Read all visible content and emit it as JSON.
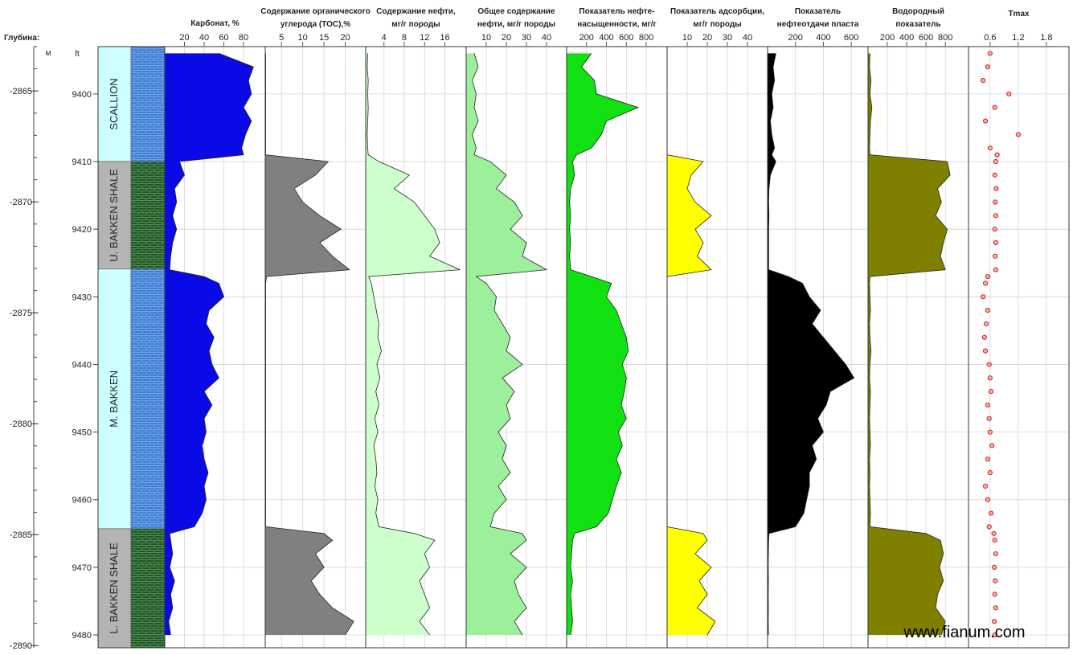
{
  "depth": {
    "label": "Глубина:",
    "m_label": "м",
    "ft_label": "ft",
    "ft": [
      9394,
      9396,
      9398,
      9400,
      9402,
      9404,
      9406,
      9408,
      9409,
      9410,
      9412,
      9414,
      9416,
      9418,
      9420,
      9422,
      9424,
      9426,
      9427,
      9428,
      9430,
      9432,
      9434,
      9436,
      9438,
      9440,
      9442,
      9444,
      9446,
      9448,
      9450,
      9452,
      9454,
      9456,
      9458,
      9460,
      9462,
      9464,
      9465,
      9466,
      9468,
      9470,
      9472,
      9474,
      9476,
      9478,
      9480
    ],
    "ft_lim": [
      9393,
      9481.9
    ],
    "ft_ticks": [
      9400,
      9410,
      9420,
      9430,
      9440,
      9450,
      9460,
      9470,
      9480
    ],
    "m_lim": [
      2863.0,
      2890.1
    ],
    "m_ticks": [
      {
        "value": 2865,
        "label": "-2865"
      },
      {
        "value": 2870,
        "label": "-2870"
      },
      {
        "value": 2875,
        "label": "-2875"
      },
      {
        "value": 2880,
        "label": "-2880"
      },
      {
        "value": 2885,
        "label": "-2885"
      },
      {
        "value": 2890,
        "label": "-2890"
      }
    ],
    "m_minor_ticks": [
      2863,
      2864,
      2865,
      2866,
      2867,
      2868,
      2869,
      2870,
      2871,
      2872,
      2873,
      2874,
      2875,
      2876,
      2877,
      2878,
      2879,
      2880,
      2881,
      2882,
      2883,
      2884,
      2885,
      2886,
      2887,
      2888,
      2889,
      2890
    ]
  },
  "formations": [
    {
      "name": "SCALLION",
      "top": 9393,
      "base": 9410,
      "label_color": "#ccffff",
      "lith_color": "#3f7fd6"
    },
    {
      "name": "U. BAKKEN SHALE",
      "top": 9410,
      "base": 9425.9,
      "label_color": "#b4b4b4",
      "lith_color": "#1d5a22"
    },
    {
      "name": "M. BAKKEN",
      "top": 9425.9,
      "base": 9464.3,
      "label_color": "#ccffff",
      "lith_color": "#3f7fd6"
    },
    {
      "name": "L. BAKKEN SHALE",
      "top": 9464.3,
      "base": 9481.9,
      "label_color": "#b4b4b4",
      "lith_color": "#1d5a22"
    }
  ],
  "chart_data": [
    {
      "type": "area",
      "title": [
        "Карбонат, %"
      ],
      "color": "#0a0ae6",
      "xlim": [
        0,
        102
      ],
      "xticks": [
        20,
        40,
        60,
        80
      ],
      "grid": true,
      "values": [
        55,
        90,
        85,
        88,
        80,
        88,
        82,
        78,
        80,
        15,
        20,
        10,
        12,
        8,
        12,
        8,
        6,
        5,
        40,
        55,
        60,
        45,
        42,
        50,
        45,
        48,
        55,
        40,
        48,
        40,
        42,
        38,
        40,
        44,
        40,
        42,
        38,
        30,
        5,
        6,
        8,
        5,
        10,
        6,
        8,
        4,
        6
      ]
    },
    {
      "type": "area",
      "title": [
        "Содержание органического",
        "углерода (ТОС),%"
      ],
      "color": "#808080",
      "xlim": [
        1.2,
        24.8
      ],
      "xticks": [
        5,
        10,
        15,
        20
      ],
      "grid": true,
      "values": [
        1.3,
        1.3,
        1.3,
        1.3,
        1.3,
        1.3,
        1.3,
        1.3,
        1.3,
        16,
        13,
        8,
        10,
        14,
        19,
        14,
        17,
        21,
        1.5,
        1.3,
        1.3,
        1.3,
        1.3,
        1.3,
        1.3,
        1.3,
        1.3,
        1.3,
        1.3,
        1.3,
        1.3,
        1.3,
        1.3,
        1.3,
        1.3,
        1.3,
        1.3,
        1.3,
        15,
        17,
        13,
        15,
        12,
        14,
        17,
        22,
        20
      ]
    },
    {
      "type": "area",
      "title": [
        "Содержание нефти,",
        "мг/г породы"
      ],
      "color": "#ccffcc",
      "xlim": [
        0.4,
        20.2
      ],
      "xticks": [
        4,
        8,
        12,
        16
      ],
      "grid": true,
      "values": [
        0.8,
        0.7,
        0.9,
        0.8,
        0.9,
        0.8,
        0.7,
        0.8,
        0.9,
        3,
        9,
        6,
        10,
        12,
        14,
        15,
        13,
        19,
        1.0,
        1.5,
        2.0,
        2.5,
        3.0,
        2.8,
        3.5,
        2.6,
        3.2,
        2.4,
        3.0,
        2.2,
        2.8,
        2.0,
        2.4,
        2.6,
        2.2,
        2.8,
        2.4,
        3.0,
        10,
        14,
        12,
        13,
        11,
        12,
        13,
        11,
        13
      ]
    },
    {
      "type": "area",
      "title": [
        "Общее содержание",
        "нефти, мг/г породы"
      ],
      "color": "#9cf09c",
      "xlim": [
        0,
        50
      ],
      "xticks": [
        10,
        20,
        30,
        40
      ],
      "grid": true,
      "values": [
        4,
        6,
        3,
        5,
        4,
        6,
        3,
        5,
        4,
        12,
        20,
        15,
        24,
        28,
        22,
        30,
        28,
        40,
        5,
        10,
        15,
        14,
        18,
        22,
        20,
        28,
        18,
        24,
        20,
        22,
        16,
        20,
        18,
        22,
        16,
        20,
        14,
        12,
        28,
        30,
        22,
        30,
        24,
        26,
        30,
        24,
        28
      ]
    },
    {
      "type": "area",
      "title": [
        "Показатель нефте-",
        "насыщенности, мг/г"
      ],
      "color": "#11e011",
      "xlim": [
        0,
        1010
      ],
      "xticks": [
        200,
        400,
        600,
        800
      ],
      "grid": true,
      "values": [
        250,
        150,
        280,
        300,
        720,
        400,
        350,
        250,
        100,
        60,
        80,
        40,
        30,
        40,
        30,
        40,
        30,
        40,
        250,
        450,
        400,
        500,
        550,
        600,
        620,
        560,
        600,
        580,
        550,
        600,
        520,
        560,
        500,
        550,
        500,
        460,
        420,
        300,
        80,
        60,
        50,
        40,
        60,
        40,
        50,
        60,
        40
      ]
    },
    {
      "type": "area",
      "title": [
        "Показатель адсорбции,",
        "мг/г породы"
      ],
      "color": "#ffff00",
      "xlim": [
        0,
        50
      ],
      "xticks": [
        10,
        20,
        30,
        40
      ],
      "grid": true,
      "values": [
        0,
        0,
        0,
        0,
        0,
        0,
        0,
        0,
        0,
        18,
        12,
        10,
        14,
        22,
        14,
        18,
        15,
        22,
        0,
        0,
        0,
        0,
        0,
        0,
        0,
        0,
        0,
        0,
        0,
        0,
        0,
        0,
        0,
        0,
        0,
        0,
        0,
        0,
        18,
        20,
        14,
        22,
        16,
        20,
        15,
        24,
        20
      ]
    },
    {
      "type": "area",
      "title": [
        "Показатель",
        "нефтеотдачи пласта"
      ],
      "color": "#000000",
      "xlim": [
        0,
        720
      ],
      "xticks": [
        200,
        400,
        600
      ],
      "grid": true,
      "values": [
        60,
        40,
        50,
        30,
        40,
        20,
        30,
        50,
        30,
        60,
        20,
        10,
        8,
        10,
        8,
        8,
        8,
        8,
        150,
        250,
        300,
        380,
        320,
        400,
        480,
        560,
        620,
        450,
        420,
        360,
        400,
        320,
        350,
        300,
        300,
        280,
        260,
        200,
        10,
        8,
        6,
        5,
        6,
        5,
        6,
        5,
        6
      ]
    },
    {
      "type": "area",
      "title": [
        "Водородный",
        "показатель"
      ],
      "color": "#808000",
      "xlim": [
        0,
        1040
      ],
      "xticks": [
        200,
        400,
        600,
        800
      ],
      "grid": true,
      "values": [
        20,
        15,
        30,
        20,
        40,
        25,
        20,
        15,
        20,
        820,
        850,
        720,
        760,
        700,
        820,
        780,
        750,
        800,
        20,
        15,
        20,
        25,
        15,
        20,
        30,
        20,
        15,
        25,
        20,
        15,
        20,
        25,
        15,
        20,
        15,
        20,
        25,
        20,
        600,
        750,
        780,
        740,
        780,
        720,
        700,
        800,
        760
      ]
    },
    {
      "type": "scatter",
      "title": [
        "Tmax"
      ],
      "color": "#d02020",
      "xlim": [
        0.14,
        2.28
      ],
      "xticks": [
        0.6,
        1.2,
        1.8
      ],
      "grid": true,
      "values": [
        0.6,
        0.55,
        0.45,
        1.0,
        0.7,
        0.5,
        1.2,
        0.6,
        0.75,
        0.72,
        0.7,
        0.73,
        0.71,
        0.72,
        0.7,
        0.72,
        0.71,
        0.72,
        0.55,
        0.5,
        0.45,
        0.55,
        0.52,
        0.48,
        0.5,
        0.58,
        0.6,
        0.62,
        0.55,
        0.58,
        0.6,
        0.64,
        0.55,
        0.6,
        0.5,
        0.55,
        0.62,
        0.58,
        0.68,
        0.7,
        0.72,
        0.69,
        0.71,
        0.7,
        0.72,
        0.69,
        0.7
      ]
    }
  ],
  "watermark": "www.fianum.com"
}
